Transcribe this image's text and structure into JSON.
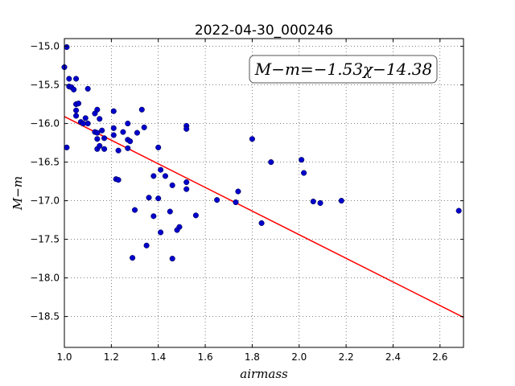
{
  "chart_data": {
    "type": "scatter",
    "title": "2022-04-30_000246",
    "xlabel": "airmass",
    "ylabel": "M−m",
    "xlim": [
      1.0,
      2.7
    ],
    "ylim": [
      -18.9,
      -14.9
    ],
    "xticks": [
      1.0,
      1.2,
      1.4,
      1.6,
      1.8,
      2.0,
      2.2,
      2.4,
      2.6
    ],
    "xtick_labels": [
      "1.0",
      "1.2",
      "1.4",
      "1.6",
      "1.8",
      "2.0",
      "2.2",
      "2.4",
      "2.6"
    ],
    "yticks": [
      -15.0,
      -15.5,
      -16.0,
      -16.5,
      -17.0,
      -17.5,
      -18.0,
      -18.5
    ],
    "ytick_labels": [
      "−15.0",
      "−15.5",
      "−16.0",
      "−16.5",
      "−17.0",
      "−17.5",
      "−18.0",
      "−18.5"
    ],
    "grid": true,
    "annotation": "M−m=−1.53χ−14.38",
    "fit": {
      "slope": -1.53,
      "intercept": -14.38,
      "color": "#ff0000"
    },
    "point_color": "#0000cc",
    "points": [
      [
        1.01,
        -15.01
      ],
      [
        1.0,
        -15.27
      ],
      [
        1.02,
        -15.42
      ],
      [
        1.05,
        -15.42
      ],
      [
        1.02,
        -15.52
      ],
      [
        1.03,
        -15.53
      ],
      [
        1.04,
        -15.56
      ],
      [
        1.1,
        -15.55
      ],
      [
        1.05,
        -15.75
      ],
      [
        1.06,
        -15.74
      ],
      [
        1.05,
        -15.83
      ],
      [
        1.05,
        -15.9
      ],
      [
        1.07,
        -15.98
      ],
      [
        1.09,
        -15.93
      ],
      [
        1.1,
        -16.0
      ],
      [
        1.08,
        -16.0
      ],
      [
        1.01,
        -16.31
      ],
      [
        1.14,
        -15.82
      ],
      [
        1.13,
        -15.87
      ],
      [
        1.15,
        -15.94
      ],
      [
        1.13,
        -16.11
      ],
      [
        1.14,
        -16.12
      ],
      [
        1.16,
        -16.09
      ],
      [
        1.17,
        -16.19
      ],
      [
        1.14,
        -16.2
      ],
      [
        1.14,
        -16.33
      ],
      [
        1.15,
        -16.29
      ],
      [
        1.17,
        -16.33
      ],
      [
        1.21,
        -15.84
      ],
      [
        1.21,
        -16.06
      ],
      [
        1.21,
        -16.15
      ],
      [
        1.25,
        -16.11
      ],
      [
        1.27,
        -16.0
      ],
      [
        1.27,
        -16.21
      ],
      [
        1.28,
        -16.23
      ],
      [
        1.27,
        -16.32
      ],
      [
        1.23,
        -16.35
      ],
      [
        1.31,
        -16.12
      ],
      [
        1.33,
        -15.82
      ],
      [
        1.34,
        -16.05
      ],
      [
        1.22,
        -16.72
      ],
      [
        1.23,
        -16.73
      ],
      [
        1.4,
        -16.31
      ],
      [
        1.41,
        -16.6
      ],
      [
        1.38,
        -16.68
      ],
      [
        1.43,
        -16.68
      ],
      [
        1.46,
        -16.8
      ],
      [
        1.36,
        -16.96
      ],
      [
        1.4,
        -16.97
      ],
      [
        1.3,
        -17.12
      ],
      [
        1.38,
        -17.2
      ],
      [
        1.45,
        -17.14
      ],
      [
        1.41,
        -17.41
      ],
      [
        1.49,
        -17.34
      ],
      [
        1.48,
        -17.38
      ],
      [
        1.35,
        -17.58
      ],
      [
        1.29,
        -17.74
      ],
      [
        1.46,
        -17.75
      ],
      [
        1.52,
        -16.03
      ],
      [
        1.52,
        -16.07
      ],
      [
        1.52,
        -16.76
      ],
      [
        1.52,
        -16.85
      ],
      [
        1.56,
        -17.19
      ],
      [
        1.65,
        -16.99
      ],
      [
        1.73,
        -17.02
      ],
      [
        1.74,
        -16.88
      ],
      [
        1.8,
        -16.2
      ],
      [
        1.84,
        -17.29
      ],
      [
        1.88,
        -16.5
      ],
      [
        2.01,
        -16.47
      ],
      [
        2.02,
        -16.64
      ],
      [
        2.06,
        -17.01
      ],
      [
        2.09,
        -17.03
      ],
      [
        2.18,
        -17.0
      ],
      [
        2.68,
        -17.13
      ]
    ]
  }
}
